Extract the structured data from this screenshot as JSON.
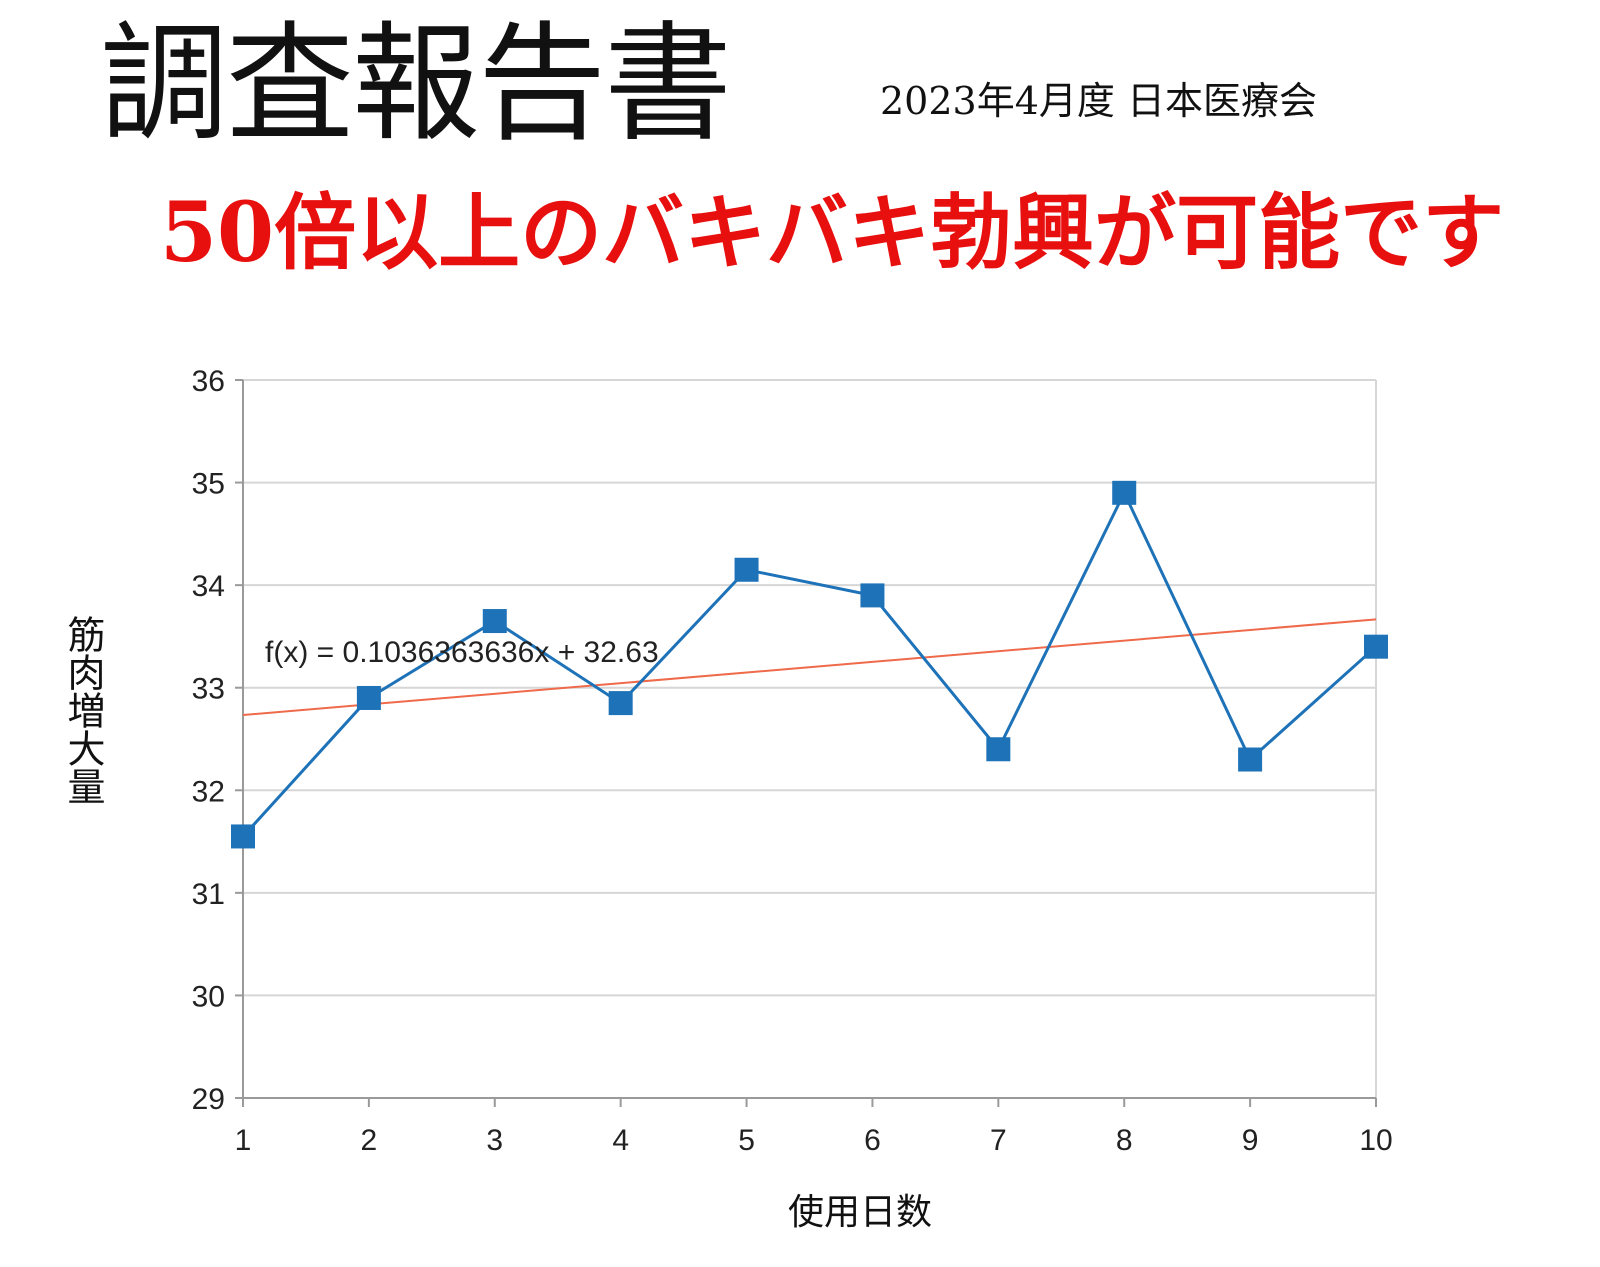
{
  "header": {
    "title": "調査報告書",
    "subtitle": "2023年4月度 日本医療会",
    "headline": "50倍以上のバキバキ勃興が可能です"
  },
  "colors": {
    "series": "#1d72b8",
    "trend": "#ee6a4a",
    "grid": "#d6d6d6",
    "axis": "#9a9a9a",
    "headline": "#e8100f"
  },
  "chart_data": {
    "type": "line",
    "title": "",
    "xlabel": "使用日数",
    "ylabel": "筋肉増大量",
    "x": [
      1,
      2,
      3,
      4,
      5,
      6,
      7,
      8,
      9,
      10
    ],
    "x_tick_labels": [
      "1",
      "2",
      "3",
      "4",
      "5",
      "6",
      "7",
      "8",
      "9",
      "10"
    ],
    "y_tick_labels": [
      "29",
      "30",
      "31",
      "32",
      "33",
      "34",
      "35",
      "36"
    ],
    "xlim": [
      1,
      10
    ],
    "ylim": [
      29,
      36
    ],
    "grid": true,
    "legend": "none",
    "series": [
      {
        "values": [
          31.55,
          32.9,
          33.65,
          32.85,
          34.15,
          33.9,
          32.4,
          34.9,
          32.3,
          33.4
        ],
        "marker": "square"
      }
    ],
    "trendline": {
      "equation": "f(x) = 0.1036363636x + 32.63",
      "slope": 0.1036363636,
      "intercept": 32.63
    }
  }
}
